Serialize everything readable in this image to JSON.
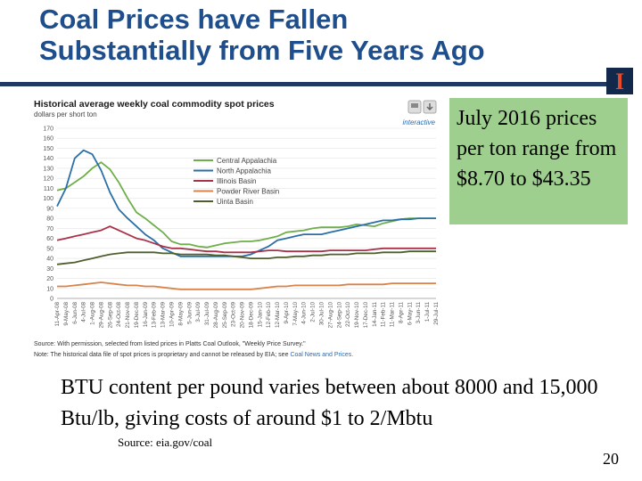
{
  "slide": {
    "title_line1": "Coal Prices have Fallen",
    "title_line2": "Substantially from Five Years Ago",
    "callout": "July 2016 prices per ton range from $8.70 to $43.35",
    "bullet": "BTU content per pound varies between about 8000 and 15,000 Btu/lb, giving costs of around $1 to 2/Mbtu",
    "source": "Source: eia.gov/coal",
    "page_number": "20",
    "logo_letter": "I"
  },
  "colors": {
    "title": "#1f4e8c",
    "rule": "#1f3864",
    "callout_bg": "#9fcf8f",
    "logo_bg": "#13294b",
    "logo_fg": "#e84a27"
  },
  "chart_data": {
    "type": "line",
    "title": "Historical average weekly coal commodity spot prices",
    "unit_label": "dollars per short ton",
    "interactive_label": "interactive",
    "ylim": [
      0,
      170
    ],
    "ytick_step": 10,
    "xlabels": [
      "11-Apr-08",
      "9-May-08",
      "6-Jun-08",
      "4-Jul-08",
      "1-Aug-08",
      "29-Aug-08",
      "26-Sep-08",
      "24-Oct-08",
      "21-Nov-08",
      "19-Dec-08",
      "16-Jan-09",
      "13-Feb-09",
      "13-Mar-09",
      "10-Apr-09",
      "8-May-09",
      "5-Jun-09",
      "3-Jul-09",
      "31-Jul-09",
      "28-Aug-09",
      "25-Sep-09",
      "23-Oct-09",
      "20-Nov-09",
      "18-Dec-09",
      "15-Jan-10",
      "12-Feb-10",
      "12-Mar-10",
      "9-Apr-10",
      "7-May-10",
      "4-Jun-10",
      "2-Jul-10",
      "30-Jul-10",
      "27-Aug-10",
      "24-Sep-10",
      "22-Oct-10",
      "19-Nov-10",
      "17-Dec-10",
      "14-Jan-11",
      "11-Feb-11",
      "11-Mar-11",
      "8-Apr-11",
      "6-May-11",
      "3-Jun-11",
      "1-Jul-11",
      "29-Jul-11"
    ],
    "grid": true,
    "legend_position": "right",
    "series": [
      {
        "name": "Central Appalachia",
        "color": "#6fae4a",
        "values": [
          108,
          110,
          116,
          122,
          130,
          136,
          129,
          116,
          100,
          86,
          80,
          73,
          66,
          57,
          54,
          54,
          52,
          51,
          53,
          55,
          56,
          57,
          57,
          58,
          60,
          62,
          66,
          67,
          68,
          70,
          71,
          71,
          71,
          72,
          74,
          73,
          72,
          75,
          77,
          79,
          80,
          80,
          80,
          80
        ]
      },
      {
        "name": "North Appalachia",
        "color": "#2a6fa8",
        "values": [
          92,
          110,
          140,
          148,
          144,
          128,
          106,
          89,
          80,
          72,
          64,
          58,
          50,
          46,
          42,
          42,
          42,
          42,
          42,
          42,
          42,
          42,
          44,
          48,
          52,
          58,
          60,
          62,
          64,
          64,
          64,
          66,
          68,
          70,
          72,
          74,
          76,
          78,
          78,
          79,
          79,
          80,
          80,
          80
        ]
      },
      {
        "name": "Illinois Basin",
        "color": "#a8324a",
        "values": [
          58,
          60,
          62,
          64,
          66,
          68,
          72,
          68,
          64,
          60,
          58,
          55,
          52,
          50,
          50,
          49,
          48,
          47,
          47,
          46,
          46,
          46,
          46,
          47,
          48,
          48,
          47,
          47,
          47,
          47,
          47,
          48,
          48,
          48,
          48,
          48,
          49,
          50,
          50,
          50,
          50,
          50,
          50,
          50
        ]
      },
      {
        "name": "Powder River Basin",
        "color": "#d9824a",
        "values": [
          12,
          12,
          13,
          14,
          15,
          16,
          15,
          14,
          13,
          13,
          12,
          12,
          11,
          10,
          9,
          9,
          9,
          9,
          9,
          9,
          9,
          9,
          9,
          10,
          11,
          12,
          12,
          13,
          13,
          13,
          13,
          13,
          13,
          14,
          14,
          14,
          14,
          14,
          15,
          15,
          15,
          15,
          15,
          15
        ]
      },
      {
        "name": "Uinta Basin",
        "color": "#4e5f2e",
        "values": [
          34,
          35,
          36,
          38,
          40,
          42,
          44,
          45,
          46,
          46,
          46,
          46,
          45,
          45,
          44,
          44,
          44,
          44,
          43,
          43,
          42,
          41,
          40,
          40,
          40,
          41,
          41,
          42,
          42,
          43,
          43,
          44,
          44,
          44,
          45,
          45,
          45,
          46,
          46,
          46,
          47,
          47,
          47,
          47
        ]
      }
    ],
    "source_note": "Source: With permission, selected from listed prices in Platts Coal Outlook, \"Weekly Price Survey.\"",
    "historical_note": "Note: The historical data file of spot prices is proprietary and cannot be released by EIA; see",
    "note_link": "Coal News and Prices."
  }
}
